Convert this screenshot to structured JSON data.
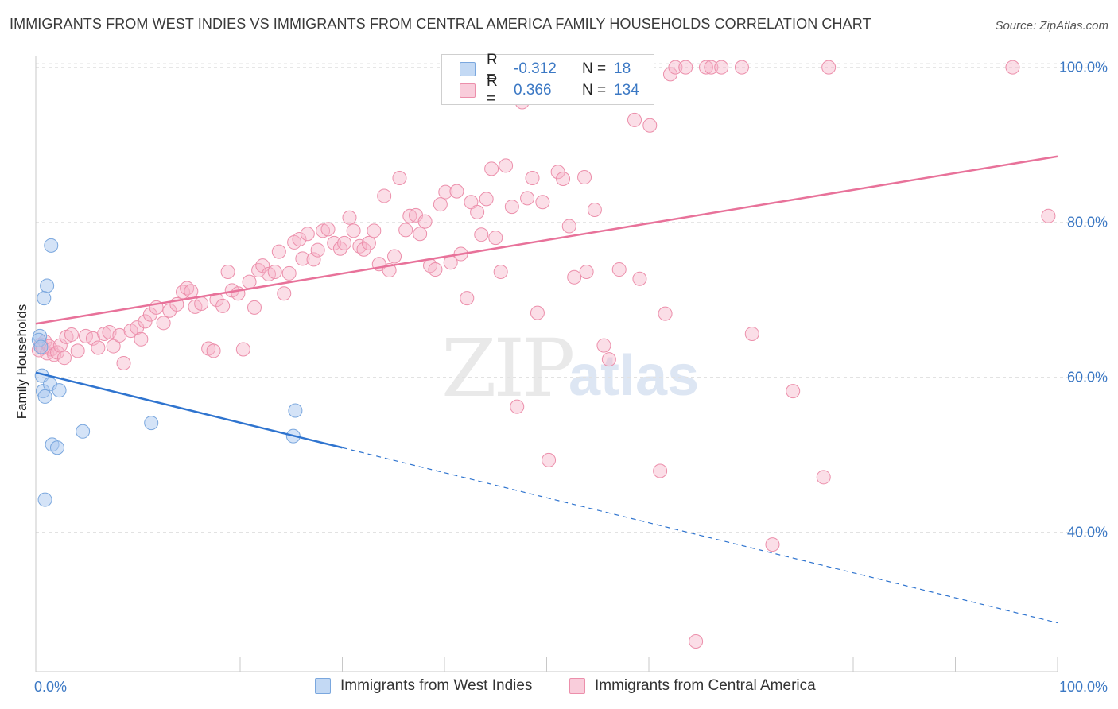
{
  "header": {
    "title": "IMMIGRANTS FROM WEST INDIES VS IMMIGRANTS FROM CENTRAL AMERICA FAMILY HOUSEHOLDS CORRELATION CHART",
    "source": "Source: ZipAtlas.com"
  },
  "watermark": {
    "zip": "ZIP",
    "atlas": "atlas"
  },
  "legend": {
    "rows": [
      {
        "r_label": "R =",
        "r_value": "-0.312",
        "n_label": "N =",
        "n_value": "18",
        "color": "#a9c8ef"
      },
      {
        "r_label": "R =",
        "r_value": "0.366",
        "n_label": "N =",
        "n_value": "134",
        "color": "#f6b6c9"
      }
    ]
  },
  "bottom_legend": {
    "items": [
      {
        "label": "Immigrants from West Indies",
        "color": "#a9c8ef"
      },
      {
        "label": "Immigrants from Central America",
        "color": "#f6b6c9"
      }
    ]
  },
  "chart_data": {
    "type": "scatter",
    "title": "IMMIGRANTS FROM WEST INDIES VS IMMIGRANTS FROM CENTRAL AMERICA FAMILY HOUSEHOLDS CORRELATION CHART",
    "xlabel": "",
    "ylabel": "Family Households",
    "xlim": [
      0,
      100
    ],
    "ylim": [
      22,
      101.5
    ],
    "x_tick_labels": [
      "0.0%",
      "100.0%"
    ],
    "y_ticks": [
      40,
      60,
      80,
      100
    ],
    "y_tick_labels": [
      "40.0%",
      "60.0%",
      "80.0%",
      "100.0%"
    ],
    "grid": true,
    "legend_position": "top-center",
    "series": [
      {
        "name": "Immigrants from West Indies",
        "color": "#a9c8ef",
        "edge": "#7aa7de",
        "trend_color": "#2f74cf",
        "trend": {
          "x0": 0,
          "y0": 60.6,
          "x1": 30,
          "y1": 50.9,
          "x_end": 100,
          "y_end": 28.3
        },
        "points": [
          [
            0.4,
            65.3
          ],
          [
            0.6,
            60.2
          ],
          [
            0.7,
            58.2
          ],
          [
            0.9,
            57.5
          ],
          [
            1.1,
            71.8
          ],
          [
            0.8,
            70.2
          ],
          [
            1.5,
            77.0
          ],
          [
            1.4,
            59.1
          ],
          [
            2.3,
            58.3
          ],
          [
            1.6,
            51.3
          ],
          [
            2.1,
            50.9
          ],
          [
            0.9,
            44.2
          ],
          [
            4.6,
            53.0
          ],
          [
            11.3,
            54.1
          ],
          [
            25.2,
            52.4
          ],
          [
            25.4,
            55.7
          ],
          [
            0.3,
            64.8
          ],
          [
            0.5,
            63.9
          ]
        ]
      },
      {
        "name": "Immigrants from Central America",
        "color": "#f6b6c9",
        "edge": "#ec8fab",
        "trend_color": "#e8729a",
        "trend": {
          "x0": 0,
          "y0": 66.9,
          "x1": 100,
          "y1": 88.5
        },
        "points": [
          [
            0.3,
            63.5
          ],
          [
            0.5,
            64.2
          ],
          [
            0.7,
            63.8
          ],
          [
            0.9,
            64.6
          ],
          [
            1.1,
            63.1
          ],
          [
            1.3,
            64.0
          ],
          [
            1.5,
            63.6
          ],
          [
            1.8,
            62.9
          ],
          [
            2.1,
            63.2
          ],
          [
            2.4,
            64.1
          ],
          [
            2.8,
            62.5
          ],
          [
            3.0,
            65.2
          ],
          [
            3.5,
            65.5
          ],
          [
            4.1,
            63.4
          ],
          [
            4.9,
            65.3
          ],
          [
            5.6,
            65.0
          ],
          [
            6.1,
            63.8
          ],
          [
            6.7,
            65.6
          ],
          [
            7.2,
            65.8
          ],
          [
            7.6,
            64.0
          ],
          [
            8.2,
            65.4
          ],
          [
            8.6,
            61.8
          ],
          [
            9.3,
            66.0
          ],
          [
            9.9,
            66.4
          ],
          [
            10.3,
            64.9
          ],
          [
            10.7,
            67.2
          ],
          [
            11.2,
            68.1
          ],
          [
            11.8,
            69.0
          ],
          [
            12.5,
            67.0
          ],
          [
            13.1,
            68.6
          ],
          [
            13.8,
            69.4
          ],
          [
            14.4,
            71.0
          ],
          [
            14.8,
            71.5
          ],
          [
            15.2,
            71.1
          ],
          [
            15.6,
            69.1
          ],
          [
            16.2,
            69.5
          ],
          [
            16.9,
            63.7
          ],
          [
            17.4,
            63.4
          ],
          [
            17.7,
            70.0
          ],
          [
            18.3,
            69.2
          ],
          [
            18.8,
            73.6
          ],
          [
            19.2,
            71.2
          ],
          [
            19.8,
            70.8
          ],
          [
            20.3,
            63.6
          ],
          [
            20.9,
            72.3
          ],
          [
            21.4,
            69.0
          ],
          [
            21.8,
            73.8
          ],
          [
            22.2,
            74.4
          ],
          [
            22.8,
            73.3
          ],
          [
            23.4,
            73.6
          ],
          [
            23.8,
            76.2
          ],
          [
            24.3,
            70.8
          ],
          [
            24.8,
            73.4
          ],
          [
            25.3,
            77.4
          ],
          [
            25.8,
            77.8
          ],
          [
            26.1,
            75.3
          ],
          [
            26.6,
            78.5
          ],
          [
            27.2,
            75.2
          ],
          [
            27.6,
            76.4
          ],
          [
            28.1,
            78.9
          ],
          [
            28.6,
            79.1
          ],
          [
            29.2,
            77.3
          ],
          [
            29.8,
            76.6
          ],
          [
            30.2,
            77.3
          ],
          [
            30.7,
            80.6
          ],
          [
            31.1,
            78.9
          ],
          [
            31.7,
            76.9
          ],
          [
            32.1,
            76.5
          ],
          [
            32.6,
            77.3
          ],
          [
            33.1,
            78.9
          ],
          [
            33.6,
            74.6
          ],
          [
            34.1,
            83.4
          ],
          [
            34.6,
            73.8
          ],
          [
            35.1,
            75.6
          ],
          [
            35.6,
            85.7
          ],
          [
            36.2,
            79.0
          ],
          [
            36.6,
            80.8
          ],
          [
            37.2,
            80.9
          ],
          [
            37.6,
            78.5
          ],
          [
            38.1,
            80.1
          ],
          [
            38.6,
            74.4
          ],
          [
            39.1,
            73.9
          ],
          [
            39.6,
            82.3
          ],
          [
            40.1,
            83.9
          ],
          [
            40.6,
            74.8
          ],
          [
            41.2,
            84.0
          ],
          [
            41.6,
            75.9
          ],
          [
            42.2,
            70.2
          ],
          [
            42.6,
            82.6
          ],
          [
            43.2,
            81.3
          ],
          [
            43.6,
            78.4
          ],
          [
            44.1,
            83.0
          ],
          [
            44.6,
            86.9
          ],
          [
            45.0,
            78.0
          ],
          [
            45.5,
            73.6
          ],
          [
            46.0,
            87.3
          ],
          [
            46.6,
            82.0
          ],
          [
            47.1,
            56.2
          ],
          [
            47.6,
            95.5
          ],
          [
            48.1,
            83.1
          ],
          [
            48.6,
            85.7
          ],
          [
            49.1,
            68.3
          ],
          [
            49.6,
            82.6
          ],
          [
            50.2,
            49.3
          ],
          [
            51.1,
            86.5
          ],
          [
            51.6,
            85.6
          ],
          [
            52.2,
            79.5
          ],
          [
            52.7,
            72.9
          ],
          [
            53.7,
            85.8
          ],
          [
            53.9,
            73.6
          ],
          [
            54.7,
            81.6
          ],
          [
            55.6,
            64.1
          ],
          [
            56.1,
            62.3
          ],
          [
            57.1,
            73.9
          ],
          [
            58.6,
            93.2
          ],
          [
            59.1,
            72.7
          ],
          [
            60.1,
            92.5
          ],
          [
            61.1,
            47.9
          ],
          [
            61.6,
            68.2
          ],
          [
            62.1,
            99.1
          ],
          [
            62.6,
            100.0
          ],
          [
            63.6,
            100.0
          ],
          [
            64.6,
            25.9
          ],
          [
            65.6,
            100.0
          ],
          [
            66.1,
            100.0
          ],
          [
            67.1,
            100.0
          ],
          [
            69.1,
            100.0
          ],
          [
            70.1,
            65.6
          ],
          [
            72.1,
            38.4
          ],
          [
            74.1,
            58.2
          ],
          [
            77.1,
            47.1
          ],
          [
            77.6,
            100.0
          ],
          [
            95.6,
            100.0
          ],
          [
            99.1,
            80.8
          ]
        ]
      }
    ]
  }
}
